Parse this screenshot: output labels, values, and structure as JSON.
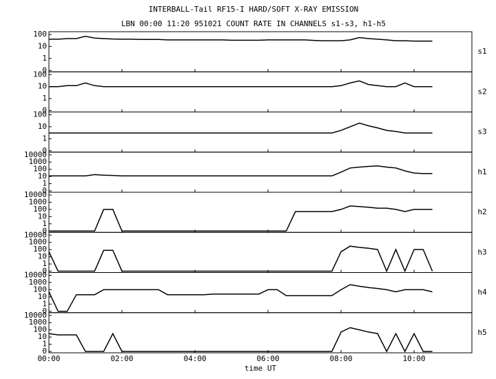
{
  "chart_data": {
    "type": "line",
    "title": "INTERBALL-Tail RF15-I HARD/SOFT X-RAY EMISSION",
    "subtitle": "LBN 00:00 11:20 951021  COUNT RATE IN CHANNELS s1-s3, h1-h5",
    "xlabel": "time UT",
    "color": "#000000",
    "xlim": [
      0,
      695
    ],
    "xticks": [
      {
        "value": 0,
        "label": "00:00"
      },
      {
        "value": 120,
        "label": "02:00"
      },
      {
        "value": 240,
        "label": "04:00"
      },
      {
        "value": 360,
        "label": "06:00"
      },
      {
        "value": 480,
        "label": "08:00"
      },
      {
        "value": 600,
        "label": "10:00"
      }
    ],
    "x": [
      0,
      15,
      30,
      45,
      60,
      75,
      90,
      105,
      120,
      135,
      150,
      165,
      180,
      195,
      210,
      225,
      240,
      255,
      270,
      285,
      300,
      315,
      330,
      345,
      360,
      375,
      390,
      405,
      420,
      435,
      450,
      465,
      480,
      495,
      510,
      525,
      540,
      555,
      570,
      585,
      600,
      615,
      630
    ],
    "series": [
      {
        "name": "s1",
        "ylim": [
          0,
          100
        ],
        "yticks": [
          0,
          1,
          10,
          100
        ],
        "values": [
          40,
          40,
          45,
          45,
          70,
          50,
          45,
          42,
          40,
          40,
          38,
          38,
          38,
          35,
          35,
          35,
          35,
          35,
          35,
          35,
          33,
          33,
          33,
          33,
          35,
          35,
          35,
          35,
          35,
          32,
          30,
          30,
          30,
          35,
          55,
          45,
          40,
          35,
          30,
          30,
          28,
          28,
          28
        ]
      },
      {
        "name": "s2",
        "ylim": [
          0,
          100
        ],
        "yticks": [
          0,
          1,
          10,
          100
        ],
        "values": [
          10,
          10,
          12,
          12,
          20,
          12,
          10,
          10,
          10,
          10,
          10,
          10,
          10,
          10,
          10,
          10,
          10,
          10,
          10,
          10,
          10,
          10,
          10,
          10,
          10,
          10,
          10,
          10,
          10,
          10,
          10,
          10,
          12,
          20,
          30,
          15,
          12,
          10,
          10,
          20,
          10,
          10,
          10
        ]
      },
      {
        "name": "s3",
        "ylim": [
          0,
          100
        ],
        "yticks": [
          0,
          1,
          10,
          100
        ],
        "values": [
          3,
          3,
          3,
          3,
          3,
          3,
          3,
          3,
          3,
          3,
          3,
          3,
          3,
          3,
          3,
          3,
          3,
          3,
          3,
          3,
          3,
          3,
          3,
          3,
          3,
          3,
          3,
          3,
          3,
          3,
          3,
          3,
          5,
          10,
          20,
          12,
          8,
          5,
          4,
          3,
          3,
          3,
          3
        ]
      },
      {
        "name": "h1",
        "ylim": [
          0,
          10000
        ],
        "yticks": [
          0,
          1,
          10,
          100,
          1000,
          10000
        ],
        "values": [
          12,
          12,
          12,
          12,
          12,
          18,
          15,
          14,
          12,
          12,
          12,
          12,
          12,
          12,
          12,
          12,
          12,
          12,
          12,
          12,
          12,
          12,
          12,
          12,
          12,
          12,
          12,
          12,
          12,
          12,
          12,
          12,
          40,
          150,
          200,
          250,
          300,
          200,
          150,
          60,
          30,
          25,
          25
        ]
      },
      {
        "name": "h2",
        "ylim": [
          0,
          10000
        ],
        "yticks": [
          0,
          1,
          10,
          100,
          1000,
          10000
        ],
        "values": [
          0,
          0,
          0,
          0,
          0,
          0,
          100,
          100,
          0,
          0,
          0,
          0,
          0,
          0,
          0,
          0,
          0,
          0,
          0,
          0,
          0,
          0,
          0,
          0,
          0,
          0,
          0,
          50,
          50,
          50,
          50,
          50,
          100,
          300,
          250,
          200,
          150,
          150,
          100,
          50,
          100,
          100,
          100
        ]
      },
      {
        "name": "h3",
        "ylim": [
          0,
          10000
        ],
        "yticks": [
          0,
          1,
          10,
          100,
          1000,
          10000
        ],
        "values": [
          50,
          0,
          0,
          0,
          0,
          0,
          80,
          80,
          0,
          0,
          0,
          0,
          0,
          0,
          0,
          0,
          0,
          0,
          0,
          0,
          0,
          0,
          0,
          0,
          0,
          0,
          0,
          0,
          0,
          0,
          0,
          0,
          50,
          300,
          200,
          150,
          100,
          0,
          100,
          0,
          100,
          100,
          0
        ]
      },
      {
        "name": "h4",
        "ylim": [
          0,
          10000
        ],
        "yticks": [
          0,
          1,
          10,
          100,
          1000,
          10000
        ],
        "values": [
          50,
          0,
          0,
          20,
          20,
          20,
          100,
          100,
          100,
          100,
          100,
          100,
          100,
          20,
          20,
          20,
          20,
          20,
          25,
          25,
          25,
          25,
          25,
          25,
          100,
          100,
          15,
          15,
          15,
          15,
          15,
          15,
          100,
          500,
          300,
          200,
          150,
          100,
          50,
          100,
          100,
          100,
          50
        ]
      },
      {
        "name": "h5",
        "ylim": [
          0,
          10000
        ],
        "yticks": [
          0,
          1,
          10,
          100,
          1000,
          10000
        ],
        "values": [
          30,
          20,
          20,
          20,
          0,
          0,
          0,
          30,
          0,
          0,
          0,
          0,
          0,
          0,
          0,
          0,
          0,
          0,
          0,
          0,
          0,
          0,
          0,
          0,
          0,
          0,
          0,
          0,
          0,
          0,
          0,
          0,
          50,
          200,
          100,
          50,
          30,
          0,
          30,
          0,
          30,
          0,
          0
        ]
      }
    ]
  }
}
